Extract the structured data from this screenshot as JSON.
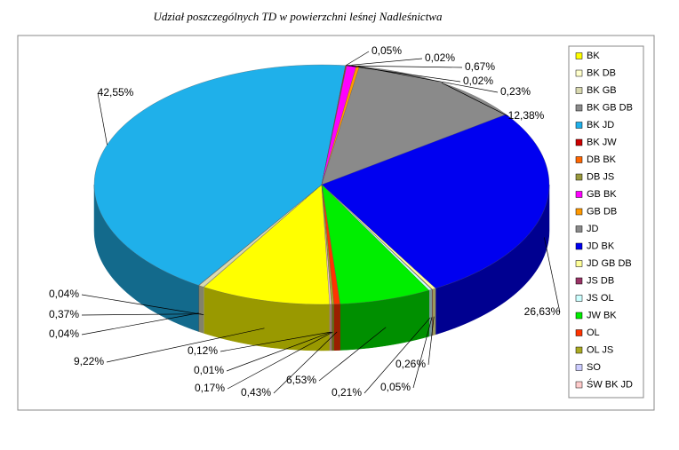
{
  "chart_data": {
    "type": "pie3d",
    "title": "Udział poszczególnych TD w powierzchni leśnej Nadleśnictwa",
    "categories": [
      "BK",
      "BK DB",
      "BK GB",
      "BK GB DB",
      "BK JD",
      "BK JW",
      "DB BK",
      "DB JS",
      "GB BK",
      "GB DB",
      "JD",
      "JD BK",
      "JD GB DB",
      "JS DB",
      "JS OL",
      "JW BK",
      "OL",
      "OL JS",
      "SO",
      "ŚW BK JD"
    ],
    "values": [
      9.22,
      0.04,
      0.37,
      0.04,
      42.55,
      0.05,
      0.02,
      0.02,
      0.67,
      0.23,
      12.38,
      26.63,
      0.26,
      0.05,
      0.21,
      6.53,
      0.43,
      0.17,
      0.01,
      0.12
    ],
    "value_labels": [
      "9,22%",
      "0,04%",
      "0,37%",
      "0,04%",
      "42,55%",
      "0,05%",
      "0,02%",
      "0,02%",
      "0,67%",
      "0,23%",
      "12,38%",
      "26,63%",
      "0,26%",
      "0,05%",
      "0,21%",
      "6,53%",
      "0,43%",
      "0,17%",
      "0,01%",
      "0,12%"
    ],
    "colors": [
      "#ffff00",
      "#ffffcc",
      "#d9d9b0",
      "#8c8c8c",
      "#1fb0ea",
      "#cc0000",
      "#ff6600",
      "#99993d",
      "#ff00ff",
      "#ff9900",
      "#8a8a8a",
      "#0000f0",
      "#ffff99",
      "#993366",
      "#ccffff",
      "#00ee00",
      "#ff3300",
      "#aaaa22",
      "#ccccff",
      "#ffcccc"
    ],
    "legend": "right"
  }
}
